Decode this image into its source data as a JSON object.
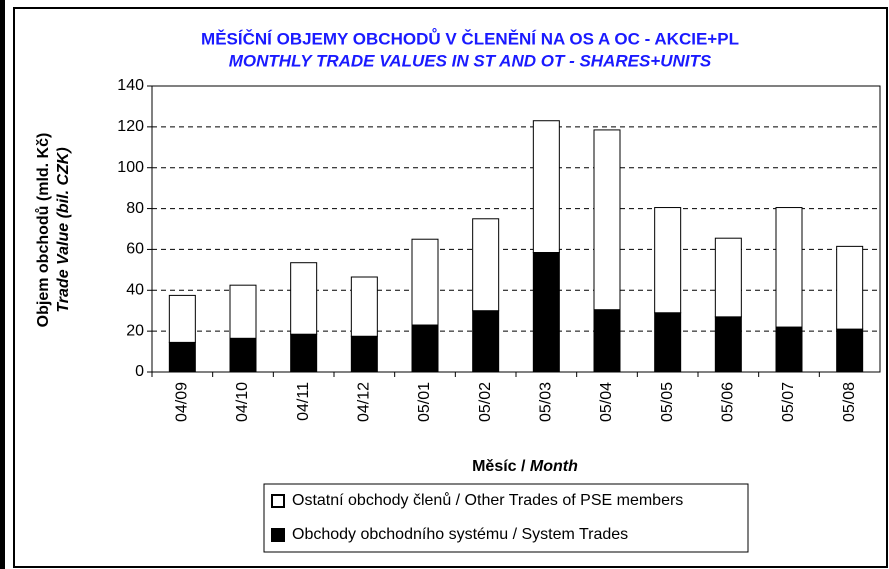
{
  "chart_data": {
    "type": "stacked_bar",
    "title": "MĚSÍČNÍ OBJEMY OBCHODŮ V ČLENĚNÍ NA OS A OC - AKCIE+PL",
    "subtitle": "MONTHLY TRADE VALUES IN ST AND OT - SHARES+UNITS",
    "ylabel": [
      "Objem obchodů (mld. Kč)",
      "Trade Value (bil. CZK)"
    ],
    "xlabel": [
      "Měsíc /",
      "Month"
    ],
    "categories": [
      "04/09",
      "04/10",
      "04/11",
      "04/12",
      "05/01",
      "05/02",
      "05/03",
      "05/04",
      "05/05",
      "05/06",
      "05/07",
      "05/08"
    ],
    "series": [
      {
        "name": "Obchody obchodního systému / System Trades",
        "color": "#000000",
        "values": [
          14.5,
          16.5,
          18.5,
          17.5,
          23,
          30,
          58.5,
          30.5,
          29,
          27,
          22,
          21
        ]
      },
      {
        "name": "Ostatní obchody členů / Other Trades of PSE members",
        "color": "#ffffff",
        "values": [
          23,
          26,
          35,
          29,
          42,
          45,
          64.5,
          88,
          51.5,
          38.5,
          58.5,
          40.5
        ]
      }
    ],
    "ylim": [
      0,
      140
    ],
    "yticks": [
      0,
      20,
      40,
      60,
      80,
      100,
      120,
      140
    ],
    "grid": true
  }
}
